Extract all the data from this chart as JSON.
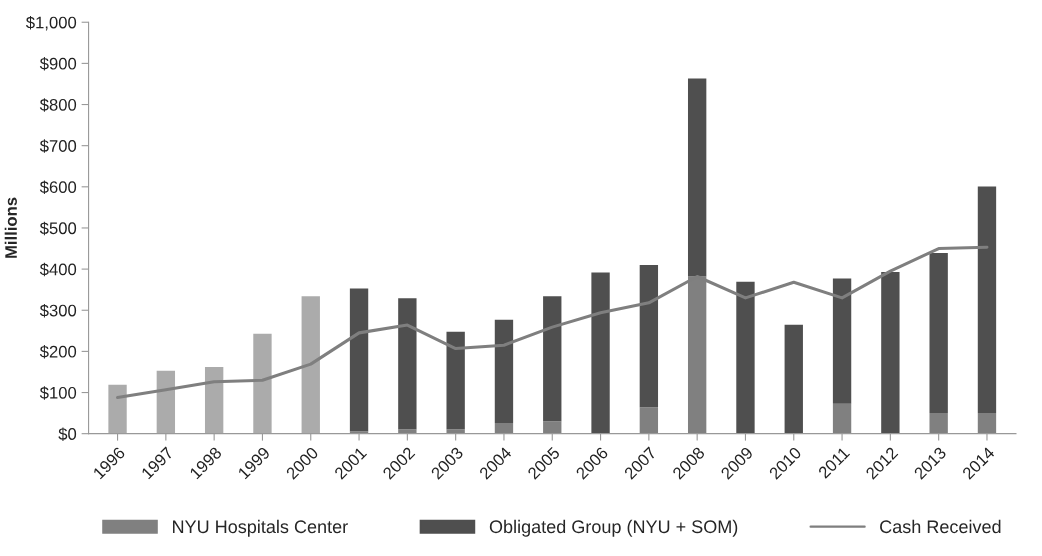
{
  "chart_data": {
    "type": "bar",
    "stacked": true,
    "ylabel": "Millions",
    "categories": [
      "1996",
      "1997",
      "1998",
      "1999",
      "2000",
      "2001",
      "2002",
      "2003",
      "2004",
      "2005",
      "2006",
      "2007",
      "2008",
      "2009",
      "2010",
      "2011",
      "2012",
      "2013",
      "2014"
    ],
    "series": [
      {
        "color": "#ababab",
        "values": [
          119,
          153,
          162,
          243,
          334,
          0,
          0,
          0,
          0,
          0,
          0,
          0,
          0,
          0,
          0,
          0,
          0,
          0,
          0
        ]
      },
      {
        "name": "NYU Hospitals Center",
        "color": "#808080",
        "values": [
          0,
          0,
          0,
          0,
          0,
          6,
          11,
          11,
          26,
          30,
          null,
          64,
          382,
          null,
          null,
          73,
          null,
          50,
          50
        ]
      },
      {
        "name": "Obligated Group (NYU + SOM)",
        "color": "#4f4f4f",
        "values": [
          0,
          0,
          0,
          0,
          0,
          347,
          318,
          237,
          251,
          304,
          392,
          346,
          481,
          369,
          265,
          304,
          393,
          389,
          551
        ]
      },
      {
        "name": "Cash Received",
        "type": "line",
        "color": "#7f7f7f",
        "values": [
          88,
          107,
          126,
          130,
          169,
          245,
          264,
          207,
          215,
          259,
          294,
          318,
          382,
          330,
          368,
          330,
          395,
          450,
          453
        ]
      }
    ],
    "ylim": [
      0,
      1000
    ],
    "yticks": [
      {
        "value": 0,
        "label": "$0"
      },
      {
        "value": 100,
        "label": "$100"
      },
      {
        "value": 200,
        "label": "$200"
      },
      {
        "value": 300,
        "label": "$300"
      },
      {
        "value": 400,
        "label": "$400"
      },
      {
        "value": 500,
        "label": "$500"
      },
      {
        "value": 600,
        "label": "$600"
      },
      {
        "value": 700,
        "label": "$700"
      },
      {
        "value": 800,
        "label": "$800"
      },
      {
        "value": 900,
        "label": "$900"
      },
      {
        "value": 1000,
        "label": "$1,000"
      }
    ],
    "grid": false,
    "legend": "bottom",
    "marker": "none"
  }
}
